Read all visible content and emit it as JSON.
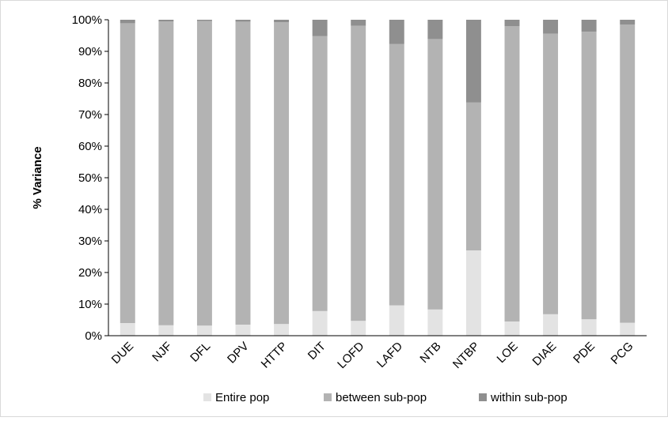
{
  "chart_data": {
    "type": "bar",
    "stacked": true,
    "percent_stacked": true,
    "title": "",
    "xlabel": "",
    "ylabel": "% Variance",
    "ylim": [
      0,
      100
    ],
    "yticks": [
      "0%",
      "10%",
      "20%",
      "30%",
      "40%",
      "50%",
      "60%",
      "70%",
      "80%",
      "90%",
      "100%"
    ],
    "grid": false,
    "legend_position": "bottom",
    "categories": [
      "DUE",
      "NJF",
      "DFL",
      "DPV",
      "HTTP",
      "DIT",
      "LOFD",
      "LAFD",
      "NTB",
      "NTBP",
      "LOE",
      "DIAE",
      "PDE",
      "PCG"
    ],
    "series": [
      {
        "name": "Entire pop",
        "color": "#e3e3e3",
        "values": [
          4,
          3.3,
          3.2,
          3.5,
          3.7,
          7.8,
          4.7,
          9.6,
          8.3,
          27,
          4.5,
          6.8,
          5.2,
          4.1
        ]
      },
      {
        "name": "between sub-pop",
        "color": "#b3b3b3",
        "values": [
          94.9,
          96.2,
          96.4,
          95.9,
          95.5,
          87,
          93.4,
          82.7,
          85.6,
          46.8,
          93.5,
          88.8,
          91,
          94.4
        ]
      },
      {
        "name": "within sub-pop",
        "color": "#8f8f8f",
        "values": [
          1.1,
          0.5,
          0.4,
          0.6,
          0.8,
          5.2,
          1.9,
          7.7,
          6.1,
          26.2,
          2,
          4.4,
          3.8,
          1.5
        ]
      }
    ]
  }
}
